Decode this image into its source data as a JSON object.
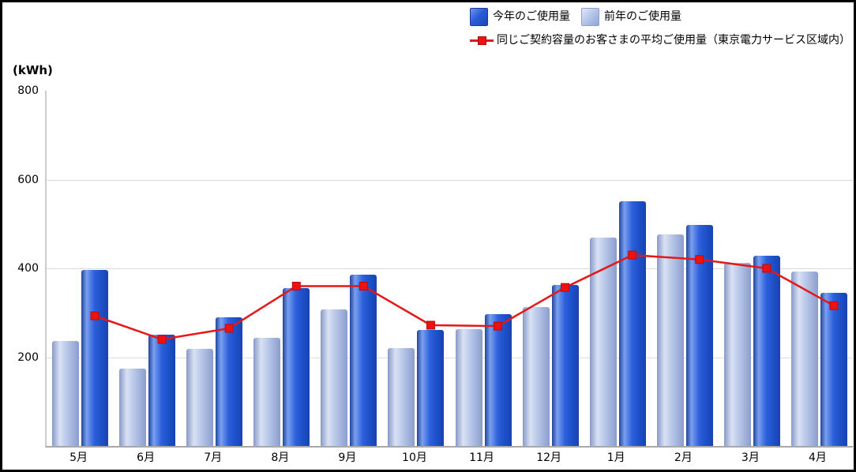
{
  "y_axis": {
    "unit_label": "(kWh)",
    "tick_labels": [
      "800",
      "600",
      "400",
      "200"
    ],
    "tick_values": [
      800,
      600,
      400,
      200
    ],
    "max": 800,
    "min": 0
  },
  "legend": {
    "this_year": "今年のご使用量",
    "prev_year": "前年のご使用量",
    "average": "同じご契約容量のお客さまの平均ご使用量（東京電力サービス区域内）"
  },
  "colors": {
    "this_year_bar": "#2458d8",
    "prev_year_bar": "#b3c3e6",
    "average_line": "#e51717",
    "marker_fill": "#ee1111",
    "marker_border": "#b50d0d",
    "gridline": "#dcdcdc"
  },
  "chart_data": {
    "type": "bar",
    "title": "",
    "xlabel": "",
    "ylabel": "(kWh)",
    "ylim": [
      0,
      800
    ],
    "grid": true,
    "legend_position": "top",
    "categories": [
      "5月",
      "6月",
      "7月",
      "8月",
      "9月",
      "10月",
      "11月",
      "12月",
      "1月",
      "2月",
      "3月",
      "4月"
    ],
    "series": [
      {
        "name": "前年のご使用量",
        "type": "bar",
        "values": [
          237,
          175,
          218,
          243,
          308,
          220,
          264,
          313,
          470,
          477,
          412,
          393
        ]
      },
      {
        "name": "今年のご使用量",
        "type": "bar",
        "values": [
          397,
          250,
          290,
          355,
          386,
          262,
          297,
          362,
          551,
          498,
          429,
          345
        ]
      },
      {
        "name": "同じご契約容量のお客さまの平均ご使用量（東京電力サービス区域内）",
        "type": "line",
        "values": [
          293,
          240,
          265,
          360,
          360,
          272,
          270,
          357,
          430,
          420,
          400,
          316
        ]
      }
    ]
  }
}
